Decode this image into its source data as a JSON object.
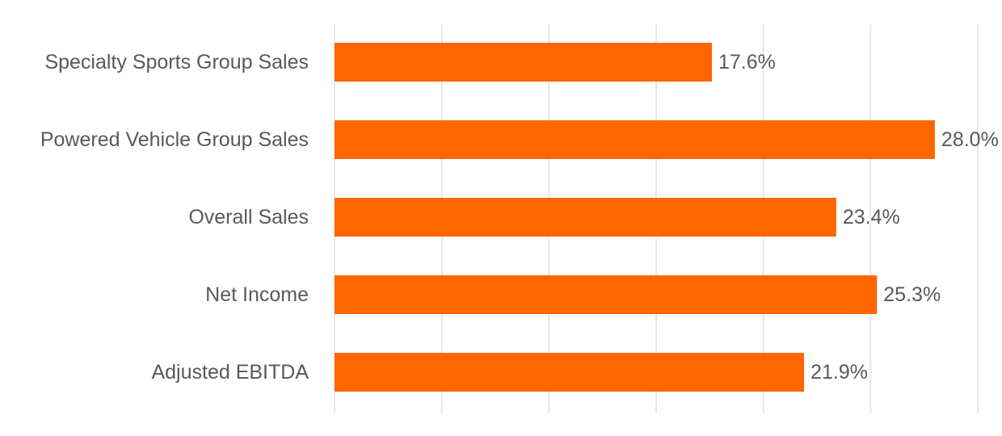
{
  "chart_data": {
    "type": "bar",
    "orientation": "horizontal",
    "categories": [
      "Specialty Sports Group Sales",
      "Powered Vehicle Group Sales",
      "Overall Sales",
      "Net Income",
      "Adjusted EBITDA"
    ],
    "values": [
      17.6,
      28.0,
      23.4,
      25.3,
      21.9
    ],
    "value_labels": [
      "17.6%",
      "28.0%",
      "23.4%",
      "25.3%",
      "21.9%"
    ],
    "unit": "%",
    "xlim": [
      0,
      30
    ],
    "grid": "vertical",
    "legend": "none",
    "title": "",
    "xlabel": "",
    "ylabel": "",
    "colors": {
      "bar": "#ff6600",
      "grid": "#e6e6e6",
      "text": "#595959"
    }
  }
}
